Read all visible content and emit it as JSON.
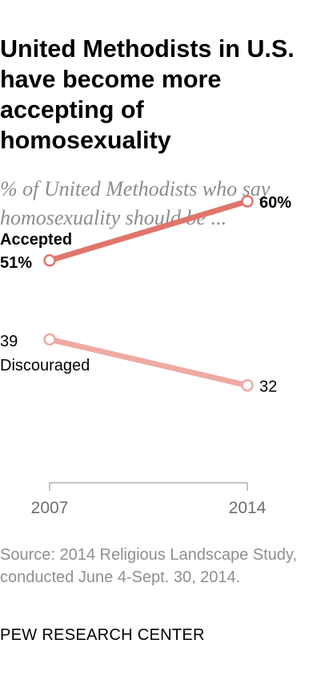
{
  "header": {
    "title": "United Methodists in U.S. have become more accepting of homosexuality",
    "subtitle": "% of United Methodists who say homosexuality should be ..."
  },
  "chart_data": {
    "type": "line",
    "x": [
      "2007",
      "2014"
    ],
    "series": [
      {
        "name": "Accepted",
        "values": [
          51,
          60
        ],
        "labels": [
          "51%",
          "60%"
        ],
        "color": "#e0756a",
        "emphasis": true
      },
      {
        "name": "Discouraged",
        "values": [
          39,
          32
        ],
        "labels": [
          "39",
          "32"
        ],
        "color": "#eeaaa3",
        "emphasis": false
      }
    ],
    "ylim": [
      0,
      100
    ],
    "grid": false,
    "xlabel": "",
    "ylabel": ""
  },
  "footer": {
    "source": "Source: 2014 Religious Landscape Study, conducted June 4-Sept. 30, 2014.",
    "org": "PEW RESEARCH CENTER"
  },
  "colors": {
    "accepted": "#e0756a",
    "discouraged": "#eeaaa3",
    "axis": "#8a8a8a",
    "muted_text": "#8f8f8f"
  }
}
